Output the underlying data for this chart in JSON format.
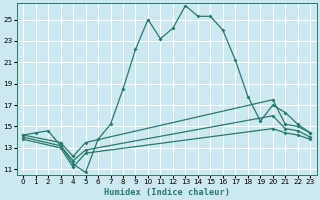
{
  "xlabel": "Humidex (Indice chaleur)",
  "bg_color": "#cce8f0",
  "line_color": "#2a7a6a",
  "grid_color": "#ffffff",
  "xlim": [
    -0.5,
    23.5
  ],
  "ylim": [
    10.5,
    26.5
  ],
  "xticks": [
    0,
    1,
    2,
    3,
    4,
    5,
    6,
    7,
    8,
    9,
    10,
    11,
    12,
    13,
    14,
    15,
    16,
    17,
    18,
    19,
    20,
    21,
    22,
    23
  ],
  "yticks": [
    11,
    13,
    15,
    17,
    19,
    21,
    23,
    25
  ],
  "lines": [
    {
      "x": [
        0,
        1,
        2,
        3,
        4,
        5,
        6,
        7,
        8,
        9,
        10,
        11,
        12,
        13,
        14,
        15,
        16,
        17,
        18,
        19,
        20,
        21,
        22,
        23
      ],
      "y": [
        14.2,
        14.4,
        14.6,
        13.2,
        11.5,
        10.7,
        13.8,
        15.2,
        18.5,
        22.2,
        25.0,
        23.2,
        24.2,
        26.3,
        25.3,
        25.3,
        24.0,
        21.2,
        17.8,
        15.5,
        17.0,
        16.3,
        15.2,
        14.4
      ],
      "markers": true
    },
    {
      "x": [
        0,
        3,
        4,
        5,
        20,
        21,
        22,
        23
      ],
      "y": [
        14.2,
        13.5,
        12.2,
        13.5,
        17.5,
        15.2,
        15.0,
        14.4
      ],
      "markers": true
    },
    {
      "x": [
        0,
        3,
        4,
        5,
        20,
        21,
        22,
        23
      ],
      "y": [
        14.0,
        13.2,
        11.8,
        12.8,
        16.0,
        14.8,
        14.6,
        14.0
      ],
      "markers": true
    },
    {
      "x": [
        0,
        3,
        4,
        5,
        20,
        21,
        22,
        23
      ],
      "y": [
        13.8,
        13.0,
        11.2,
        12.5,
        14.8,
        14.4,
        14.2,
        13.8
      ],
      "markers": true
    }
  ]
}
